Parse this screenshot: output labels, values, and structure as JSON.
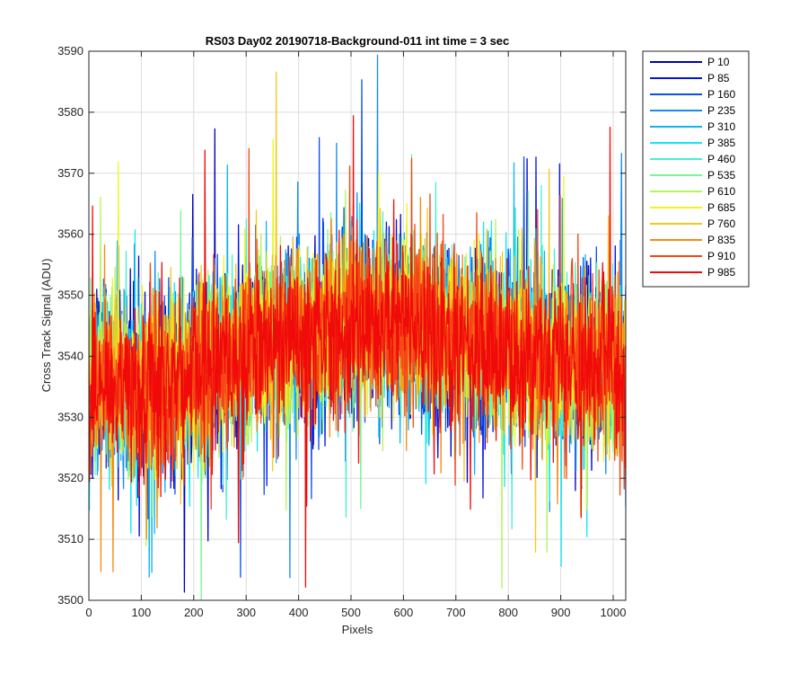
{
  "chart_data": {
    "type": "line",
    "title": "RS03 Day02 20190718-Background-011 int time = 3 sec",
    "xlabel": "Pixels",
    "ylabel": "Cross Track Signal (ADU)",
    "xlim": [
      0,
      1024
    ],
    "ylim": [
      3500,
      3590
    ],
    "xticks": [
      0,
      100,
      200,
      300,
      400,
      500,
      600,
      700,
      800,
      900,
      1000
    ],
    "yticks": [
      3500,
      3510,
      3520,
      3530,
      3540,
      3550,
      3560,
      3570,
      3580,
      3590
    ],
    "grid": true,
    "legend_position": "outside-top-right",
    "x_samples": 1024,
    "profile": [
      [
        0,
        3535
      ],
      [
        50,
        3536
      ],
      [
        100,
        3534
      ],
      [
        150,
        3535
      ],
      [
        200,
        3537
      ],
      [
        250,
        3539
      ],
      [
        300,
        3541
      ],
      [
        350,
        3542
      ],
      [
        400,
        3543
      ],
      [
        450,
        3544
      ],
      [
        500,
        3545
      ],
      [
        550,
        3545
      ],
      [
        600,
        3545
      ],
      [
        650,
        3544
      ],
      [
        700,
        3543
      ],
      [
        750,
        3542
      ],
      [
        800,
        3541
      ],
      [
        850,
        3540
      ],
      [
        900,
        3539
      ],
      [
        950,
        3539
      ],
      [
        1024,
        3538
      ]
    ],
    "noise_amplitude": 9,
    "series": [
      {
        "name": "P 10",
        "color": "#0000bf"
      },
      {
        "name": "P 85",
        "color": "#0014e6"
      },
      {
        "name": "P 160",
        "color": "#0a50f0"
      },
      {
        "name": "P 235",
        "color": "#148cf0"
      },
      {
        "name": "P 310",
        "color": "#10b4f0"
      },
      {
        "name": "P 385",
        "color": "#14e6f5"
      },
      {
        "name": "P 460",
        "color": "#46f0d2"
      },
      {
        "name": "P 535",
        "color": "#78f596"
      },
      {
        "name": "P 610",
        "color": "#b4f55a"
      },
      {
        "name": "P 685",
        "color": "#f0f51e"
      },
      {
        "name": "P 760",
        "color": "#f5c81e"
      },
      {
        "name": "P 835",
        "color": "#f58c14"
      },
      {
        "name": "P 910",
        "color": "#f54614"
      },
      {
        "name": "P 985",
        "color": "#f00a0a"
      }
    ]
  }
}
